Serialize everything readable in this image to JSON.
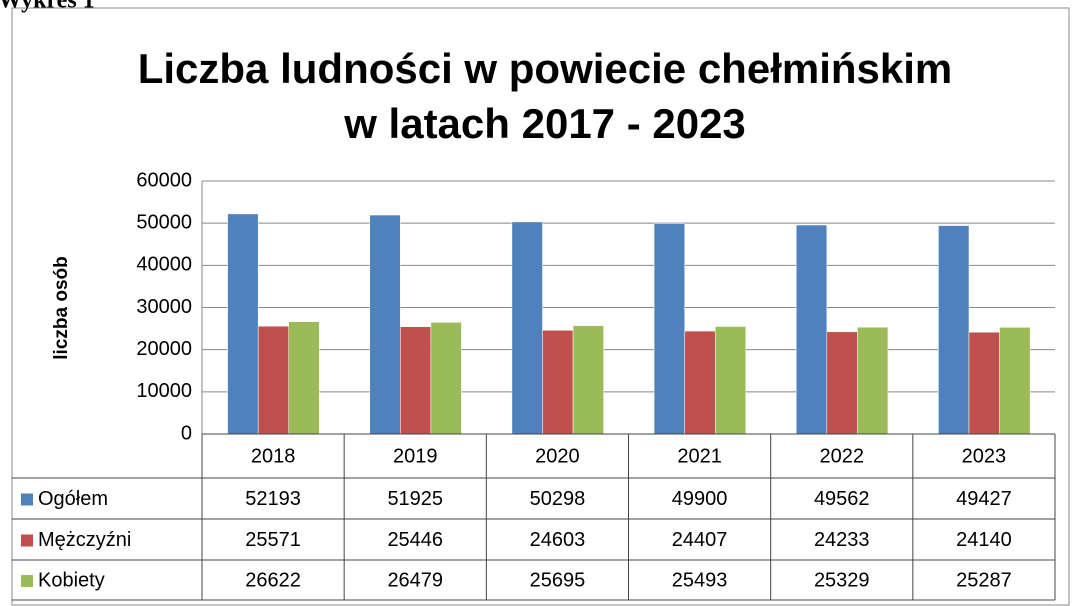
{
  "caption": "Wykres 1",
  "chart_data": {
    "type": "bar",
    "title": [
      "Liczba ludności w powiecie chełmińskim",
      "w latach 2017 - 2023"
    ],
    "ylabel": "liczba osób",
    "categories": [
      "2018",
      "2019",
      "2020",
      "2021",
      "2022",
      "2023"
    ],
    "series": [
      {
        "name": "Ogółem",
        "color": "#4f81bd",
        "values": [
          52193,
          51925,
          50298,
          49900,
          49562,
          49427
        ]
      },
      {
        "name": "Mężczyźni",
        "color": "#c0504d",
        "values": [
          25571,
          25446,
          24603,
          24407,
          24233,
          24140
        ]
      },
      {
        "name": "Kobiety",
        "color": "#9bbb59",
        "values": [
          26622,
          26479,
          25695,
          25493,
          25329,
          25287
        ]
      }
    ],
    "ylim": [
      0,
      60000
    ],
    "yticks": [
      0,
      10000,
      20000,
      30000,
      40000,
      50000,
      60000
    ],
    "grid": true
  }
}
